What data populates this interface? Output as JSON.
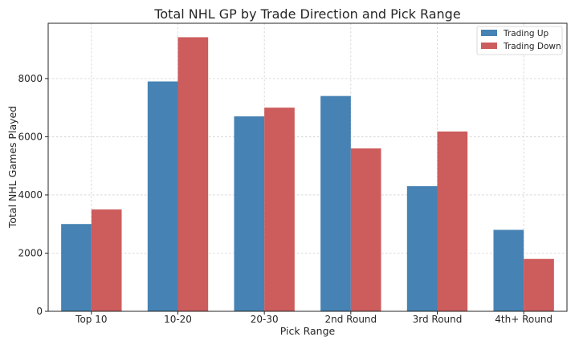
{
  "chart_data": {
    "type": "bar",
    "title": "Total NHL GP by Trade Direction and Pick Range",
    "xlabel": "Pick Range",
    "ylabel": "Total NHL Games Played",
    "categories": [
      "Top 10",
      "10-20",
      "20-30",
      "2nd Round",
      "3rd Round",
      "4th+ Round"
    ],
    "series": [
      {
        "name": "Trading Up",
        "color": "#4682b4",
        "values": [
          3000,
          7900,
          6700,
          7400,
          4300,
          2800
        ]
      },
      {
        "name": "Trading Down",
        "color": "#cd5c5c",
        "values": [
          3500,
          9420,
          7000,
          5600,
          6180,
          1800
        ]
      }
    ],
    "ylim": [
      0,
      9900
    ],
    "yticks": [
      0,
      2000,
      4000,
      6000,
      8000
    ],
    "grid": true,
    "legend_position": "top-right"
  }
}
